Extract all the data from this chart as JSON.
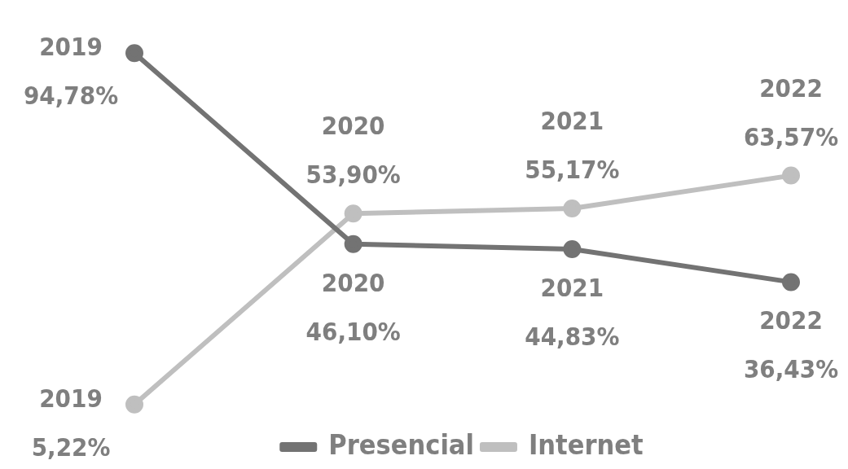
{
  "chart_data": {
    "type": "line",
    "categories": [
      "2019",
      "2020",
      "2021",
      "2022"
    ],
    "series": [
      {
        "name": "Presencial",
        "color": "#737373",
        "values": [
          94.78,
          46.1,
          44.83,
          36.43
        ],
        "value_labels": [
          "94,78%",
          "46,10%",
          "44,83%",
          "36,43%"
        ]
      },
      {
        "name": "Internet",
        "color": "#bfbfbf",
        "values": [
          5.22,
          53.9,
          55.17,
          63.57
        ],
        "value_labels": [
          "5,22%",
          "53,90%",
          "55,17%",
          "63,57%"
        ]
      }
    ],
    "marker": "circle",
    "legend": "bottom",
    "tick_labels": false
  }
}
